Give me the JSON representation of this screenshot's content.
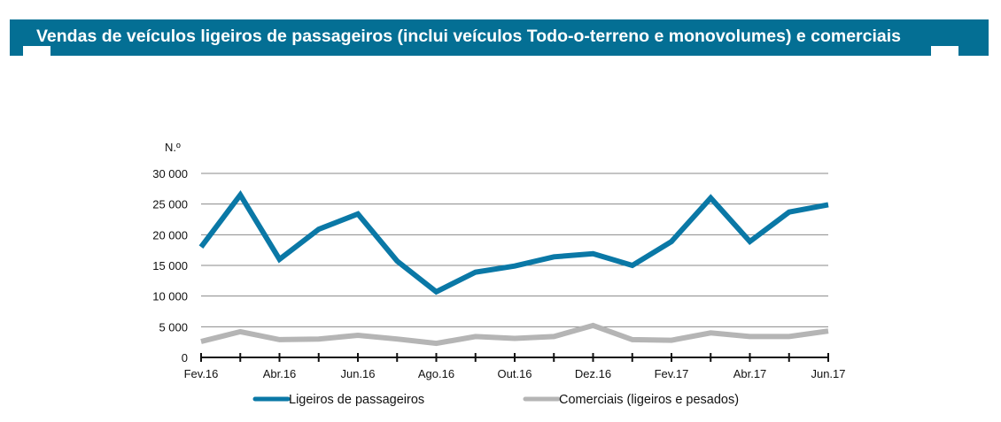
{
  "header": {
    "title": "Vendas de veículos ligeiros de passageiros (inclui veículos Todo-o-terreno e monovolumes) e comerciais"
  },
  "colors": {
    "banner": "#046f94",
    "series_passageiros": "#0a78a6",
    "series_comerciais": "#b5b5b5",
    "gridline": "#8a8a8a",
    "axis": "#111111"
  },
  "chart_data": {
    "type": "line",
    "title": "Vendas de veículos ligeiros de passageiros (inclui veículos Todo-o-terreno e monovolumes) e comerciais",
    "xlabel": "",
    "ylabel": "N.º",
    "ylim": [
      0,
      30000
    ],
    "yticks": [
      0,
      5000,
      10000,
      15000,
      20000,
      25000,
      30000
    ],
    "ytick_labels": [
      "0",
      "5 000",
      "10 000",
      "15 000",
      "20 000",
      "25 000",
      "30 000"
    ],
    "grid": true,
    "legend_position": "bottom",
    "x": [
      "Fev.16",
      "Mar.16",
      "Abr.16",
      "Mai.16",
      "Jun.16",
      "Jul.16",
      "Ago.16",
      "Set.16",
      "Out.16",
      "Nov.16",
      "Dez.16",
      "Jan.17",
      "Fev.17",
      "Mar.17",
      "Abr.17",
      "Mai.17",
      "Jun.17"
    ],
    "xtick_labels": [
      "Fev.16",
      "",
      "Abr.16",
      "",
      "Jun.16",
      "",
      "Ago.16",
      "",
      "Out.16",
      "",
      "Dez.16",
      "",
      "Fev.17",
      "",
      "Abr.17",
      "",
      "Jun.17"
    ],
    "series": [
      {
        "name": "Ligeiros de passageiros",
        "color": "#0a78a6",
        "values": [
          18000,
          26500,
          16000,
          20900,
          23400,
          15700,
          10700,
          13900,
          14900,
          16400,
          16900,
          15000,
          18900,
          26000,
          18900,
          23700,
          24900
        ]
      },
      {
        "name": "Comerciais (ligeiros e pesados)",
        "color": "#b5b5b5",
        "values": [
          2600,
          4200,
          2900,
          3000,
          3600,
          3000,
          2300,
          3400,
          3100,
          3400,
          5200,
          2900,
          2800,
          4000,
          3400,
          3400,
          4300
        ]
      }
    ]
  }
}
